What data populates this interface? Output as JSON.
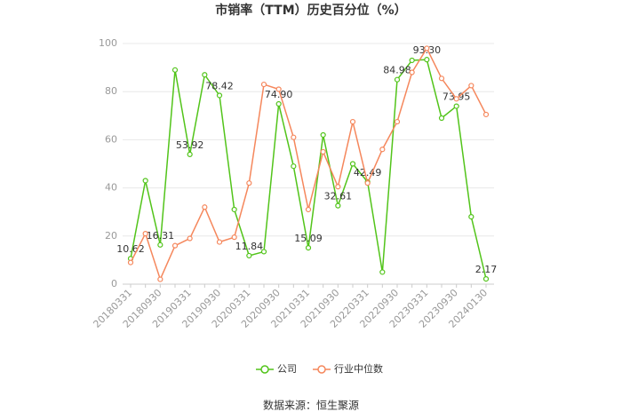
{
  "chart_data": {
    "type": "line",
    "title": "市销率（TTM）历史百分位（%）",
    "categories": [
      "20180331",
      null,
      "20180930",
      null,
      "20190331",
      null,
      "20190930",
      null,
      "20200331",
      null,
      "20200930",
      null,
      "20210331",
      null,
      "20210930",
      null,
      "20220331",
      null,
      "20220930",
      null,
      "20230331",
      null,
      "20230930",
      null,
      "20240130"
    ],
    "series": [
      {
        "name": "公司",
        "color": "#52c41a",
        "values": [
          10.62,
          43,
          16.31,
          89,
          53.92,
          87,
          78.42,
          31,
          11.84,
          13.5,
          74.9,
          49,
          15.09,
          62,
          32.61,
          50,
          42.49,
          5,
          84.98,
          93,
          93.3,
          69,
          73.95,
          28,
          2.17
        ],
        "value_labels": [
          "10.62",
          null,
          "16.31",
          null,
          "53.92",
          null,
          "78.42",
          null,
          "11.84",
          null,
          "74.90",
          null,
          "15.09",
          null,
          "32.61",
          null,
          "42.49",
          null,
          "84.98",
          null,
          "93.30",
          null,
          "73.95",
          null,
          "2.17"
        ]
      },
      {
        "name": "行业中位数",
        "color": "#f5875c",
        "values": [
          9,
          21,
          2,
          16,
          19,
          32,
          17.5,
          19.5,
          42,
          83,
          81,
          61,
          31,
          55,
          40.5,
          67.5,
          42,
          56,
          67.5,
          88,
          98,
          85.5,
          77,
          82.5,
          70.5
        ]
      }
    ],
    "ylim": [
      0,
      100
    ],
    "yticks": [
      0,
      20,
      40,
      60,
      80,
      100
    ],
    "grid": true,
    "source": "数据来源：恒生聚源"
  }
}
